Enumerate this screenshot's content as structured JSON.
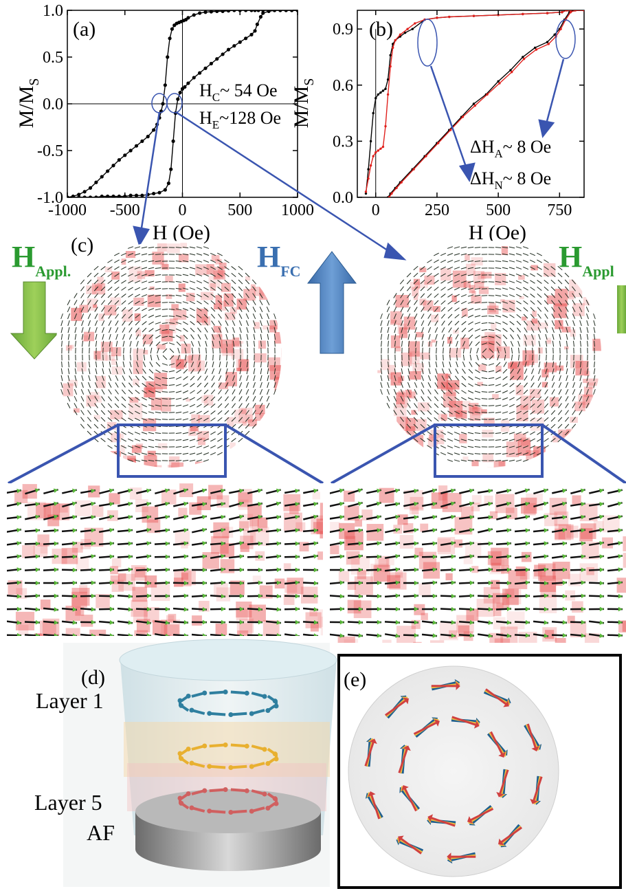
{
  "chart_data": [
    {
      "panel": "(a)",
      "type": "line",
      "xlabel": "H (Oe)",
      "ylabel_main": "M/M",
      "ylabel_sub": "S",
      "xlim": [
        -1000,
        1000
      ],
      "ylim": [
        -1.0,
        1.0
      ],
      "xticks": [
        "-1000",
        "-500",
        "0",
        "500",
        "1000"
      ],
      "yticks": [
        "1.0",
        "0.5",
        "0.0",
        "-0.5",
        "-1.0"
      ],
      "annotations": {
        "hc": {
          "main": "H",
          "sub": "C",
          "rest": "~ 54 Oe"
        },
        "he": {
          "main": "H",
          "sub": "E",
          "rest": "~128 Oe"
        }
      },
      "series": [
        {
          "x": [
            -1000,
            -950,
            -900,
            -850,
            -800,
            -750,
            -700,
            -650,
            -600,
            -550,
            -500,
            -450,
            -400,
            -350,
            -300,
            -250,
            -220,
            -200,
            -185,
            -170,
            -150,
            -130,
            -110,
            -90,
            -70,
            -50,
            -30,
            -10,
            10,
            30,
            50,
            100,
            150,
            200,
            250,
            300,
            350,
            400,
            450,
            500,
            550,
            600,
            630,
            660,
            700,
            750,
            800,
            850,
            900,
            950,
            1000
          ],
          "y": [
            -1.0,
            -0.99,
            -0.97,
            -0.94,
            -0.9,
            -0.84,
            -0.78,
            -0.72,
            -0.66,
            -0.6,
            -0.55,
            -0.5,
            -0.45,
            -0.4,
            -0.35,
            -0.28,
            -0.22,
            -0.15,
            -0.08,
            0.0,
            0.2,
            0.5,
            0.7,
            0.8,
            0.84,
            0.86,
            0.87,
            0.88,
            0.89,
            0.9,
            0.92,
            0.95,
            0.97,
            0.98,
            0.985,
            0.99,
            0.99,
            0.995,
            1.0,
            1.0,
            1.0,
            1.0,
            1.0,
            1.0,
            1.0,
            1.0,
            1.0,
            1.0,
            1.0,
            1.0,
            1.0
          ]
        },
        {
          "x": [
            -1000,
            -950,
            -900,
            -850,
            -800,
            -750,
            -700,
            -650,
            -600,
            -550,
            -500,
            -450,
            -400,
            -350,
            -300,
            -250,
            -200,
            -150,
            -120,
            -100,
            -80,
            -60,
            -40,
            -20,
            0,
            20,
            50,
            100,
            150,
            200,
            250,
            300,
            350,
            400,
            450,
            500,
            550,
            600,
            630,
            650,
            680,
            700,
            750,
            800,
            850,
            900,
            950,
            1000
          ],
          "y": [
            -1.0,
            -1.0,
            -1.0,
            -1.0,
            -1.0,
            -1.0,
            -0.99,
            -0.99,
            -0.99,
            -0.99,
            -0.99,
            -0.98,
            -0.98,
            -0.98,
            -0.97,
            -0.96,
            -0.95,
            -0.92,
            -0.85,
            -0.7,
            -0.4,
            -0.1,
            0.05,
            0.12,
            0.16,
            0.18,
            0.22,
            0.28,
            0.33,
            0.38,
            0.43,
            0.48,
            0.53,
            0.58,
            0.62,
            0.66,
            0.7,
            0.74,
            0.78,
            0.85,
            0.93,
            0.97,
            0.99,
            1.0,
            1.0,
            1.0,
            1.0,
            1.0
          ]
        }
      ]
    },
    {
      "panel": "(b)",
      "type": "line",
      "xlabel": "H (Oe)",
      "ylabel_main": "M/M",
      "ylabel_sub": "S",
      "xlim": [
        -75,
        850
      ],
      "ylim": [
        0.0,
        1.0
      ],
      "xticks": [
        "0",
        "250",
        "500",
        "750"
      ],
      "yticks": [
        "0.9",
        "0.6",
        "0.3",
        "0.0"
      ],
      "annotations": {
        "dha": {
          "main": "ΔH",
          "sub": "A",
          "rest": "~  8 Oe"
        },
        "dhn": {
          "main": "ΔH",
          "sub": "N",
          "rest": "~ 8 Oe"
        }
      },
      "series": [
        {
          "color": "#000000",
          "x": [
            -40,
            -30,
            -20,
            -10,
            0,
            10,
            20,
            30,
            40,
            50,
            60,
            70,
            80,
            100,
            120,
            150,
            200,
            250,
            300,
            400,
            500,
            600,
            700,
            760,
            780,
            800,
            850
          ],
          "y": [
            0.02,
            0.15,
            0.3,
            0.45,
            0.53,
            0.55,
            0.56,
            0.57,
            0.58,
            0.63,
            0.76,
            0.82,
            0.84,
            0.86,
            0.88,
            0.9,
            0.95,
            0.96,
            0.965,
            0.97,
            0.975,
            0.98,
            0.985,
            0.99,
            1.0,
            1.0,
            1.0
          ]
        },
        {
          "color": "#e0201c",
          "x": [
            -40,
            -30,
            -20,
            -10,
            0,
            10,
            20,
            30,
            40,
            50,
            60,
            70,
            80,
            100,
            130,
            160,
            200,
            250,
            300,
            400,
            500,
            600,
            700,
            760,
            780,
            800,
            850
          ],
          "y": [
            0.03,
            0.1,
            0.17,
            0.22,
            0.24,
            0.25,
            0.26,
            0.27,
            0.38,
            0.55,
            0.7,
            0.8,
            0.84,
            0.87,
            0.9,
            0.93,
            0.95,
            0.96,
            0.965,
            0.97,
            0.975,
            0.98,
            0.985,
            0.99,
            1.0,
            1.0,
            1.0
          ]
        },
        {
          "color": "#000000",
          "x": [
            50,
            60,
            80,
            100,
            150,
            200,
            250,
            300,
            350,
            400,
            450,
            500,
            550,
            600,
            650,
            700,
            730,
            750,
            770,
            790,
            810,
            850
          ],
          "y": [
            0.0,
            0.02,
            0.05,
            0.08,
            0.15,
            0.22,
            0.29,
            0.36,
            0.43,
            0.5,
            0.55,
            0.62,
            0.68,
            0.75,
            0.8,
            0.83,
            0.87,
            0.9,
            0.95,
            0.99,
            1.0,
            1.0
          ]
        },
        {
          "color": "#e0201c",
          "x": [
            55,
            65,
            85,
            105,
            155,
            205,
            255,
            305,
            355,
            405,
            455,
            505,
            555,
            605,
            655,
            705,
            735,
            755,
            775,
            795,
            815,
            850
          ],
          "y": [
            0.0,
            0.02,
            0.05,
            0.08,
            0.15,
            0.22,
            0.29,
            0.36,
            0.43,
            0.49,
            0.55,
            0.61,
            0.67,
            0.74,
            0.79,
            0.82,
            0.86,
            0.9,
            0.95,
            0.99,
            1.0,
            1.0
          ]
        }
      ]
    }
  ],
  "panel_c": {
    "label": "(c)",
    "h_appl": {
      "main": "H",
      "sub": "Appl."
    },
    "h_fc": {
      "main": "H",
      "sub": "FC"
    },
    "h_appl_right": {
      "main": "H",
      "sub": "Appl"
    }
  },
  "panel_d": {
    "label": "(d)",
    "layer1": "Layer 1",
    "layer5": "Layer 5",
    "af": "AF"
  },
  "panel_e": {
    "label": "(e)"
  },
  "colors": {
    "arrow_blue": "#3a55b0",
    "arrow_green": "#7ab030",
    "fc_blue": "#4a7fc0",
    "data_red": "#e0201c",
    "label_green": "#2a9a30",
    "label_blue": "#3a6fb0"
  }
}
